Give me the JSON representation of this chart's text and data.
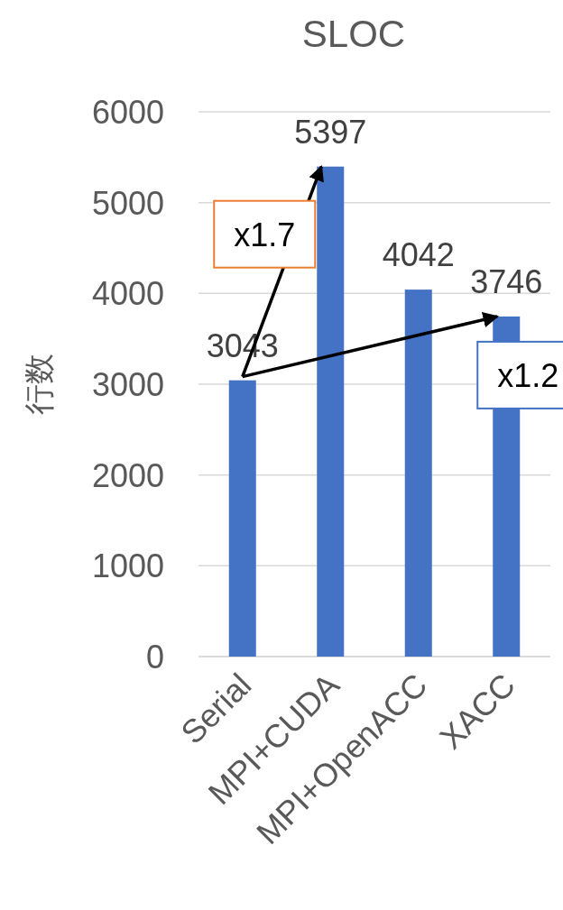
{
  "chart_data": {
    "type": "bar",
    "title": "SLOC",
    "ylabel": "行数",
    "categories": [
      "Serial",
      "MPI+CUDA",
      "MPI+OpenACC",
      "XACC"
    ],
    "values": [
      3043,
      5397,
      4042,
      3746
    ],
    "color": "#4472c4",
    "ylim": [
      0,
      6000
    ],
    "yticks": [
      0,
      1000,
      2000,
      3000,
      4000,
      5000,
      6000
    ],
    "grid": "y",
    "data_labels": true,
    "annotations": [
      {
        "text": "x1.7",
        "x": "MPI+CUDA",
        "y": 5397
      },
      {
        "text": "x1.2",
        "x": "XACC",
        "y": 3746
      }
    ]
  }
}
